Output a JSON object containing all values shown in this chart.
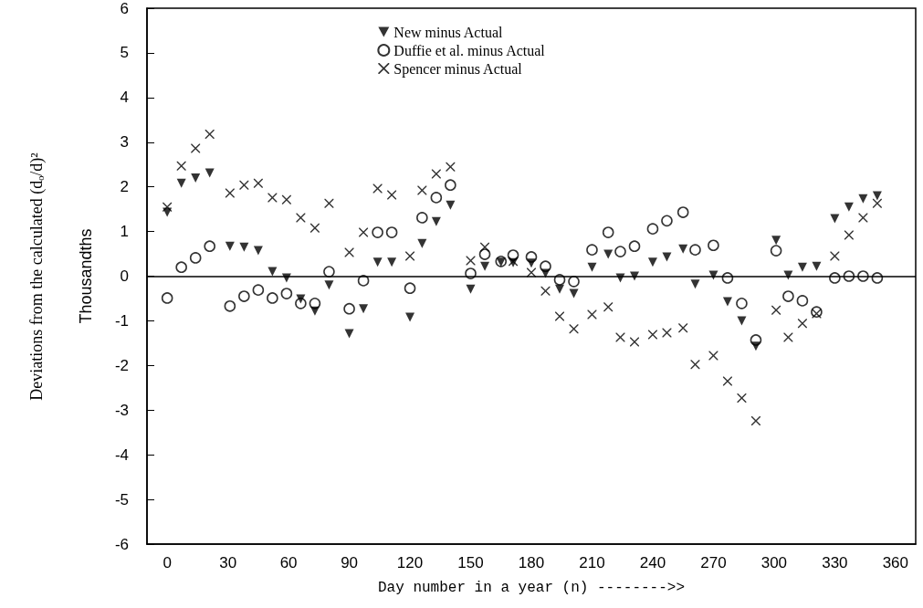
{
  "chart_data": {
    "type": "scatter",
    "xlabel": "Day number in a year (n) -------->>",
    "ylabel": "Thousandths",
    "annotations": [
      "Deviations from the calculated (dₒ/d)²"
    ],
    "xlim": [
      -10,
      370
    ],
    "xticks": [
      0,
      30,
      60,
      90,
      120,
      150,
      180,
      210,
      240,
      270,
      300,
      330,
      360
    ],
    "ylim": [
      -6,
      6
    ],
    "yticks": [
      -6,
      -5,
      -4,
      -3,
      -2,
      -1,
      0,
      1,
      2,
      3,
      4,
      5,
      6
    ],
    "grid": false,
    "legend": "top",
    "ref_lines": [
      {
        "axis": "y",
        "value": 0,
        "color": "#000000",
        "line_style": "solid"
      }
    ],
    "series": [
      {
        "name": "New minus Actual",
        "color": "#000000",
        "marker": "triangle",
        "x": [
          0,
          7,
          14,
          21,
          31,
          38,
          45,
          52,
          59,
          66,
          73,
          80,
          90,
          97,
          104,
          111,
          120,
          126,
          133,
          140,
          150,
          157,
          165,
          171,
          180,
          187,
          194,
          201,
          210,
          218,
          224,
          231,
          240,
          247,
          255,
          261,
          270,
          277,
          284,
          291,
          301,
          307,
          314,
          321,
          330,
          337,
          344,
          351
        ],
        "values": [
          1.43,
          2.08,
          2.2,
          2.31,
          0.67,
          0.65,
          0.57,
          0.1,
          -0.04,
          -0.51,
          -0.78,
          -0.2,
          -1.29,
          -0.73,
          0.31,
          0.31,
          -0.92,
          0.73,
          1.22,
          1.59,
          -0.29,
          0.22,
          0.31,
          0.3,
          0.29,
          0.06,
          -0.29,
          -0.39,
          0.2,
          0.49,
          -0.04,
          0.0,
          0.31,
          0.43,
          0.61,
          -0.18,
          0.02,
          -0.57,
          -1.0,
          -1.57,
          0.8,
          0.02,
          0.2,
          0.22,
          1.29,
          1.55,
          1.73,
          1.8
        ]
      },
      {
        "name": "Duffie et al. minus Actual",
        "color": "#000000",
        "marker": "circle",
        "x": [
          0,
          7,
          14,
          21,
          31,
          38,
          45,
          52,
          59,
          66,
          73,
          80,
          90,
          97,
          104,
          111,
          120,
          126,
          133,
          140,
          150,
          157,
          165,
          171,
          180,
          187,
          194,
          201,
          210,
          218,
          224,
          231,
          240,
          247,
          255,
          261,
          270,
          277,
          284,
          291,
          301,
          307,
          314,
          321,
          330,
          337,
          344,
          351
        ],
        "values": [
          -0.49,
          0.2,
          0.41,
          0.67,
          -0.67,
          -0.45,
          -0.31,
          -0.49,
          -0.39,
          -0.61,
          -0.61,
          0.1,
          -0.73,
          -0.1,
          0.98,
          0.98,
          -0.27,
          1.31,
          1.76,
          2.04,
          0.06,
          0.49,
          0.33,
          0.47,
          0.43,
          0.22,
          -0.08,
          -0.12,
          0.59,
          0.98,
          0.55,
          0.67,
          1.06,
          1.24,
          1.43,
          0.59,
          0.69,
          -0.04,
          -0.61,
          -1.43,
          0.57,
          -0.45,
          -0.55,
          -0.8,
          -0.04,
          0.0,
          0.0,
          -0.04
        ]
      },
      {
        "name": "Spencer minus Actual",
        "color": "#000000",
        "marker": "cross",
        "x": [
          0,
          7,
          14,
          21,
          31,
          38,
          45,
          52,
          59,
          66,
          73,
          80,
          90,
          97,
          104,
          111,
          120,
          126,
          133,
          140,
          150,
          157,
          171,
          180,
          187,
          194,
          201,
          210,
          218,
          224,
          231,
          240,
          247,
          255,
          261,
          270,
          277,
          284,
          291,
          301,
          307,
          314,
          321,
          330,
          337,
          344,
          351
        ],
        "values": [
          1.55,
          2.47,
          2.86,
          3.18,
          1.86,
          2.04,
          2.08,
          1.76,
          1.71,
          1.31,
          1.08,
          1.63,
          0.53,
          0.98,
          1.96,
          1.82,
          0.45,
          1.92,
          2.29,
          2.45,
          0.35,
          0.65,
          0.33,
          0.08,
          -0.33,
          -0.9,
          -1.18,
          -0.86,
          -0.69,
          -1.37,
          -1.47,
          -1.31,
          -1.27,
          -1.16,
          -1.98,
          -1.78,
          -2.35,
          -2.73,
          -3.24,
          -0.76,
          -1.37,
          -1.06,
          -0.84,
          0.45,
          0.92,
          1.31,
          1.63
        ]
      }
    ]
  }
}
